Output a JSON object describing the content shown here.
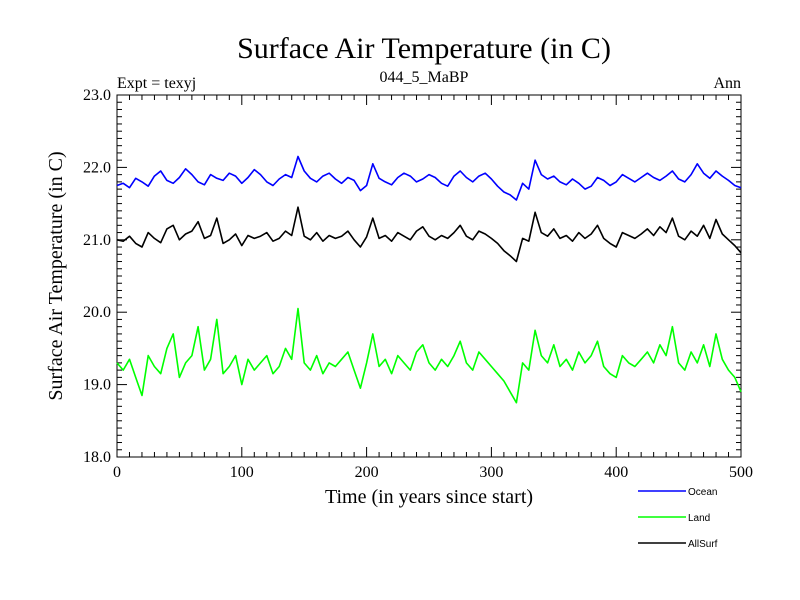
{
  "title": "Surface Air Temperature (in C)",
  "subtitle": "044_5_MaBP",
  "left_label": "Expt = texyj",
  "right_label": "Ann",
  "chart_data": {
    "type": "line",
    "xlabel": "Time (in years since start)",
    "ylabel": "Surface Air Temperature (in C)",
    "xlim": [
      0,
      500
    ],
    "ylim": [
      18.0,
      23.0
    ],
    "x_ticks": [
      0,
      100,
      200,
      300,
      400,
      500
    ],
    "x_tick_labels": [
      "0",
      "100",
      "200",
      "300",
      "400",
      "500"
    ],
    "y_ticks": [
      18.0,
      19.0,
      20.0,
      21.0,
      22.0,
      23.0
    ],
    "y_tick_labels": [
      "18.0",
      "19.0",
      "20.0",
      "21.0",
      "22.0",
      "23.0"
    ],
    "grid": false,
    "legend_position": "bottom-right, outside plot",
    "x_step": 5,
    "series": [
      {
        "name": "Ocean",
        "color": "#0000ff",
        "values": [
          21.75,
          21.78,
          21.72,
          21.85,
          21.8,
          21.74,
          21.88,
          21.95,
          21.82,
          21.78,
          21.86,
          21.98,
          21.9,
          21.8,
          21.76,
          21.9,
          21.85,
          21.82,
          21.92,
          21.88,
          21.78,
          21.86,
          21.97,
          21.9,
          21.8,
          21.75,
          21.84,
          21.9,
          21.86,
          22.15,
          21.95,
          21.85,
          21.8,
          21.88,
          21.92,
          21.84,
          21.78,
          21.86,
          21.82,
          21.68,
          21.75,
          22.05,
          21.85,
          21.8,
          21.76,
          21.86,
          21.92,
          21.88,
          21.8,
          21.84,
          21.9,
          21.86,
          21.78,
          21.74,
          21.88,
          21.95,
          21.86,
          21.8,
          21.88,
          21.92,
          21.84,
          21.74,
          21.66,
          21.62,
          21.55,
          21.78,
          21.7,
          22.1,
          21.9,
          21.84,
          21.88,
          21.8,
          21.76,
          21.84,
          21.78,
          21.7,
          21.74,
          21.86,
          21.82,
          21.75,
          21.8,
          21.9,
          21.85,
          21.8,
          21.86,
          21.92,
          21.86,
          21.82,
          21.88,
          21.95,
          21.84,
          21.8,
          21.9,
          22.05,
          21.92,
          21.85,
          21.95,
          21.88,
          21.82,
          21.75,
          21.72
        ]
      },
      {
        "name": "Land",
        "color": "#00ff00",
        "values": [
          19.3,
          19.2,
          19.35,
          19.1,
          18.85,
          19.4,
          19.25,
          19.15,
          19.5,
          19.7,
          19.1,
          19.3,
          19.4,
          19.8,
          19.2,
          19.35,
          19.9,
          19.15,
          19.25,
          19.4,
          19.0,
          19.35,
          19.2,
          19.3,
          19.4,
          19.15,
          19.25,
          19.5,
          19.35,
          20.05,
          19.3,
          19.2,
          19.4,
          19.15,
          19.3,
          19.25,
          19.35,
          19.45,
          19.2,
          18.95,
          19.3,
          19.7,
          19.25,
          19.35,
          19.15,
          19.4,
          19.3,
          19.2,
          19.45,
          19.55,
          19.3,
          19.2,
          19.35,
          19.25,
          19.4,
          19.6,
          19.3,
          19.2,
          19.45,
          19.35,
          19.25,
          19.15,
          19.05,
          18.9,
          18.75,
          19.3,
          19.2,
          19.75,
          19.4,
          19.3,
          19.55,
          19.25,
          19.35,
          19.2,
          19.45,
          19.3,
          19.4,
          19.6,
          19.25,
          19.15,
          19.1,
          19.4,
          19.3,
          19.25,
          19.35,
          19.45,
          19.3,
          19.55,
          19.4,
          19.8,
          19.3,
          19.2,
          19.45,
          19.3,
          19.55,
          19.25,
          19.7,
          19.35,
          19.2,
          19.1,
          18.9
        ]
      },
      {
        "name": "AllSurf",
        "color": "#000000",
        "values": [
          21.0,
          20.98,
          21.05,
          20.95,
          20.9,
          21.1,
          21.02,
          20.96,
          21.15,
          21.2,
          21.0,
          21.08,
          21.12,
          21.25,
          21.02,
          21.06,
          21.3,
          20.95,
          21.0,
          21.08,
          20.92,
          21.06,
          21.02,
          21.05,
          21.1,
          20.98,
          21.02,
          21.12,
          21.06,
          21.45,
          21.05,
          21.0,
          21.1,
          20.98,
          21.06,
          21.02,
          21.05,
          21.12,
          21.0,
          20.9,
          21.04,
          21.3,
          21.02,
          21.06,
          20.98,
          21.1,
          21.05,
          21.0,
          21.12,
          21.18,
          21.05,
          21.0,
          21.06,
          21.02,
          21.1,
          21.2,
          21.05,
          21.0,
          21.12,
          21.08,
          21.02,
          20.95,
          20.85,
          20.78,
          20.7,
          21.02,
          20.98,
          21.38,
          21.1,
          21.05,
          21.15,
          21.02,
          21.06,
          20.98,
          21.1,
          21.02,
          21.08,
          21.2,
          21.02,
          20.95,
          20.9,
          21.1,
          21.06,
          21.02,
          21.08,
          21.15,
          21.06,
          21.18,
          21.1,
          21.3,
          21.05,
          21.0,
          21.12,
          21.05,
          21.2,
          21.02,
          21.28,
          21.08,
          21.0,
          20.92,
          20.82
        ]
      }
    ]
  }
}
